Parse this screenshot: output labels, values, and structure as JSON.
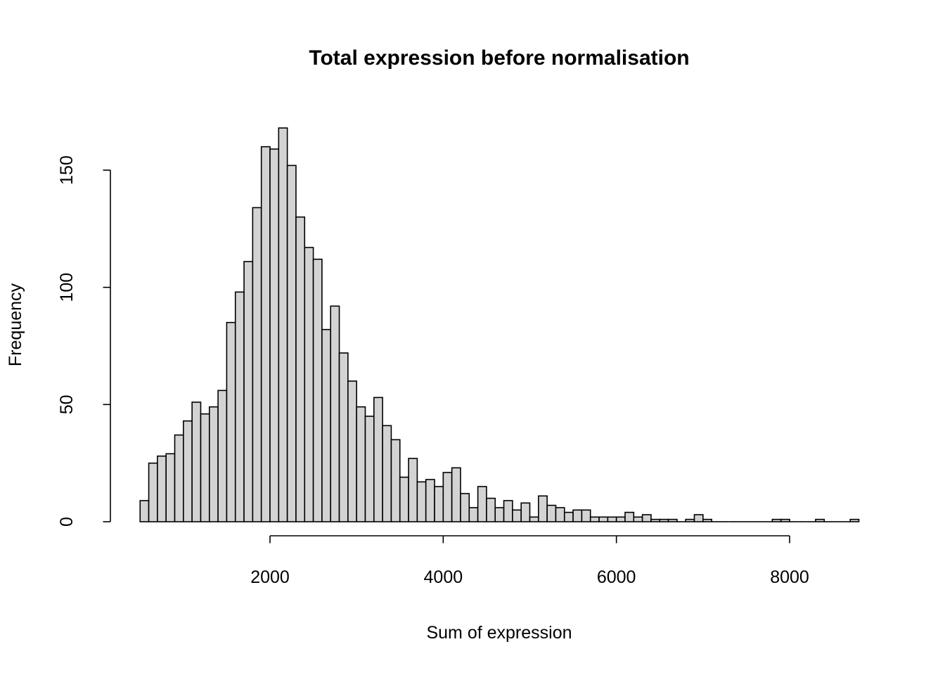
{
  "chart_data": {
    "type": "bar",
    "subtype": "histogram",
    "title": "Total expression before normalisation",
    "xlabel": "Sum of expression",
    "ylabel": "Frequency",
    "bin_start": 500,
    "bin_width": 100,
    "values": [
      9,
      25,
      28,
      29,
      37,
      43,
      51,
      46,
      49,
      56,
      85,
      98,
      111,
      134,
      160,
      159,
      168,
      152,
      130,
      117,
      112,
      82,
      92,
      72,
      60,
      49,
      45,
      53,
      41,
      35,
      19,
      27,
      17,
      18,
      15,
      21,
      23,
      12,
      6,
      15,
      10,
      6,
      9,
      5,
      8,
      2,
      11,
      7,
      6,
      4,
      5,
      5,
      2,
      2,
      2,
      2,
      4,
      2,
      3,
      1,
      1,
      1,
      0,
      1,
      3,
      1,
      0,
      0,
      0,
      0,
      0,
      0,
      0,
      1,
      1,
      0,
      0,
      0,
      1,
      0,
      0,
      0,
      1
    ],
    "x_ticks": [
      2000,
      4000,
      6000,
      8000
    ],
    "y_ticks": [
      0,
      50,
      100,
      150
    ],
    "x_axis_range": [
      2000,
      8000
    ],
    "data_range": [
      500,
      8800
    ],
    "ylim": [
      0,
      168
    ],
    "grid": false,
    "legend": null,
    "bar_fill": "#d3d3d3",
    "bar_stroke": "#000000",
    "axis_color": "#000000",
    "background": "#ffffff"
  }
}
